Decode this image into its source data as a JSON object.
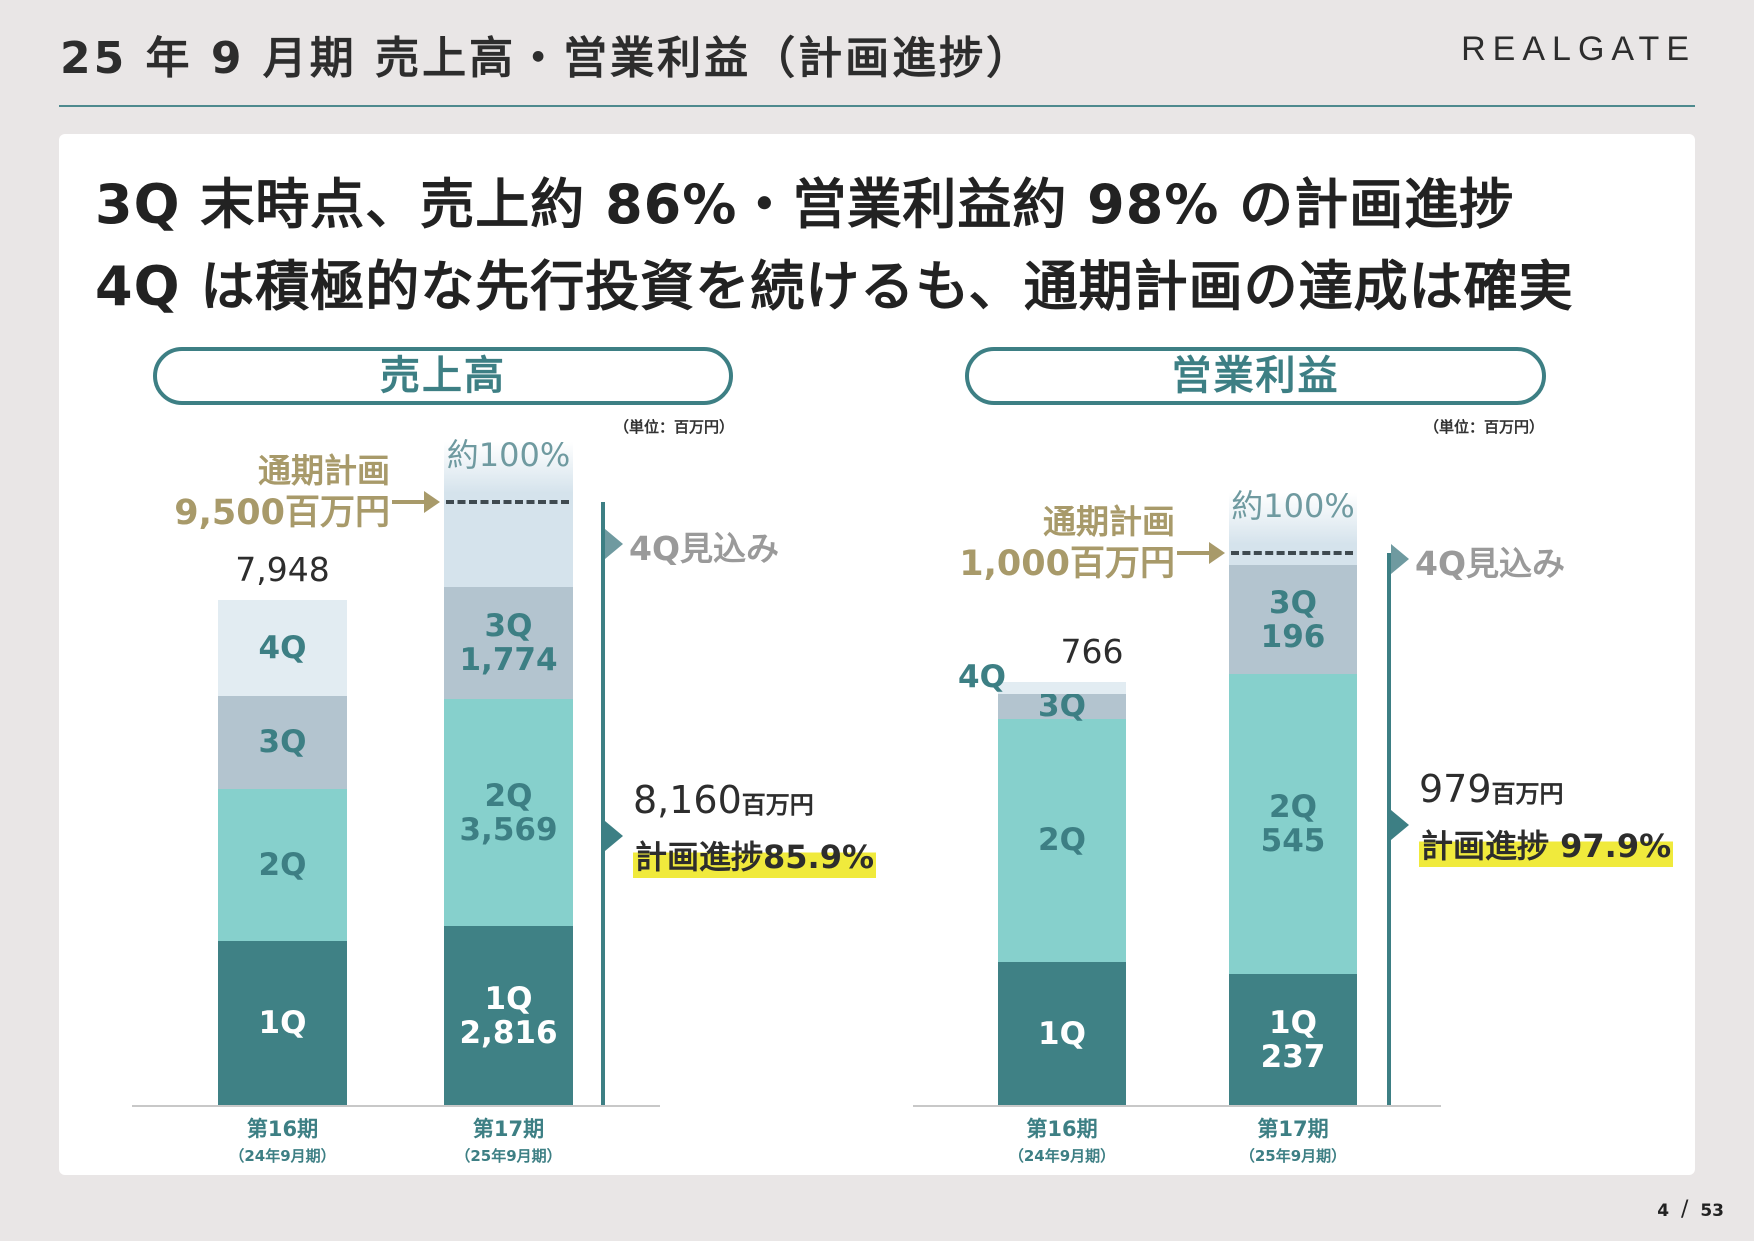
{
  "header": {
    "title": "25 年 9 月期 売上高・営業利益（計画進捗）",
    "logo": "REALGATE"
  },
  "headline": [
    "3Q 末時点、売上約 86%・営業利益約 98% の計画進捗",
    "4Q は積極的な先行投資を続けるも、通期計画の達成は確実"
  ],
  "panels": [
    {
      "title": "売上高",
      "unit": "（単位：百万円）",
      "plan_label": "通期計画",
      "plan_value": "9,500百万円",
      "approx_label": "約100%",
      "forecast_label": "4Q見込み",
      "total_value": "8,160",
      "total_unit": "百万円",
      "progress_label": "計画進捗85.9%",
      "prev_total": "7,948"
    },
    {
      "title": "営業利益",
      "unit": "（単位：百万円）",
      "plan_label": "通期計画",
      "plan_value": "1,000百万円",
      "approx_label": "約100%",
      "forecast_label": "4Q見込み",
      "total_value": "979",
      "total_unit": "百万円",
      "progress_label": "計画進捗 97.9%",
      "prev_total": "766"
    }
  ],
  "colors": {
    "q1": "#3f8185",
    "q2": "#86d0cc",
    "q3": "#b3c4cf",
    "q4": "#e2ecf2",
    "accent": "#3d7f84",
    "plan": "#a89a6a",
    "highlight": "#f0ea3c",
    "forecast_text": "#9a9a9a"
  },
  "chart_data": [
    {
      "type": "bar",
      "stacked": true,
      "title": "売上高",
      "categories": [
        "第16期",
        "第17期"
      ],
      "category_sublabels": [
        "（24年9月期）",
        "（25年9月期）"
      ],
      "series": [
        {
          "name": "1Q",
          "values": [
            2583,
            2816
          ],
          "value_labels": [
            null,
            "2,816"
          ]
        },
        {
          "name": "2Q",
          "values": [
            2394,
            3569
          ],
          "value_labels": [
            null,
            "3,569"
          ]
        },
        {
          "name": "3Q",
          "values": [
            1465,
            1774
          ],
          "value_labels": [
            null,
            "1,774"
          ]
        },
        {
          "name": "4Q",
          "values": [
            1506,
            null
          ],
          "value_labels": [
            null,
            null
          ]
        }
      ],
      "totals": [
        7948,
        8160
      ],
      "plan": 9500
    },
    {
      "type": "bar",
      "stacked": true,
      "title": "営業利益",
      "categories": [
        "第16期",
        "第17期"
      ],
      "category_sublabels": [
        "（24年9月期）",
        "（25年9月期）"
      ],
      "series": [
        {
          "name": "1Q",
          "values": [
            259,
            237
          ],
          "value_labels": [
            null,
            "237"
          ]
        },
        {
          "name": "2Q",
          "values": [
            441,
            545
          ],
          "value_labels": [
            null,
            "545"
          ]
        },
        {
          "name": "3Q",
          "values": [
            45,
            196
          ],
          "value_labels": [
            null,
            "196"
          ]
        },
        {
          "name": "4Q",
          "values": [
            21,
            null
          ],
          "value_labels": [
            null,
            null
          ]
        }
      ],
      "totals": [
        766,
        979
      ],
      "plan": 1000
    }
  ],
  "page": {
    "current": "4",
    "separator": "/",
    "total": "53"
  }
}
